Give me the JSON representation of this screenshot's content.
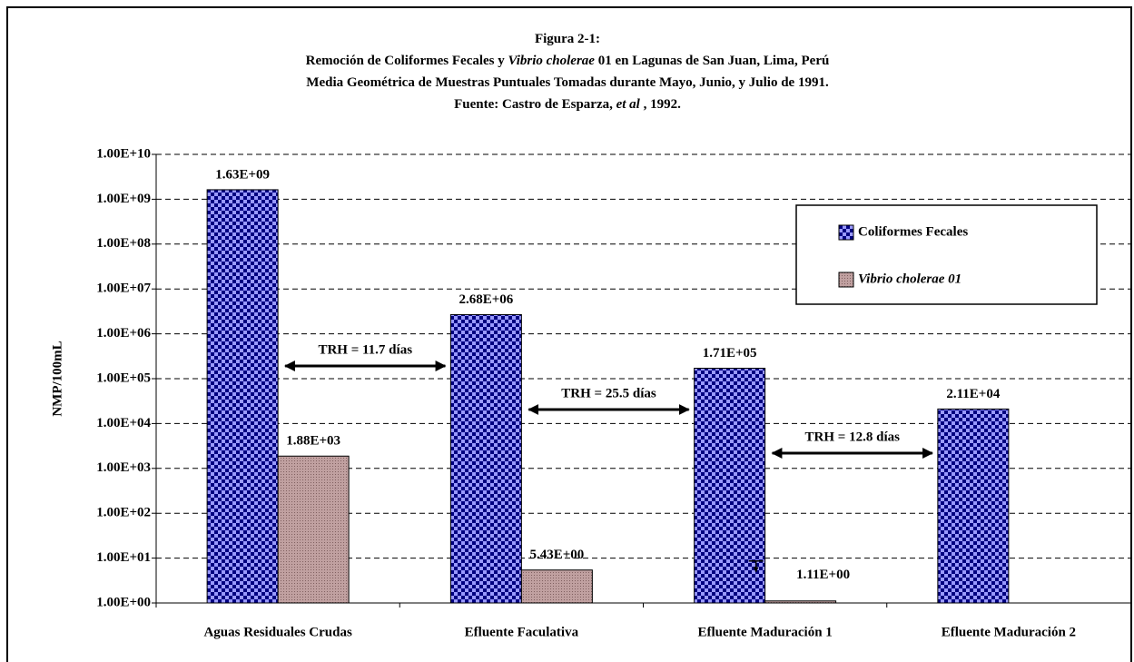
{
  "chart_data": {
    "type": "bar",
    "title": [
      [
        {
          "text": "Figura 2-1:"
        }
      ],
      [
        {
          "text": "Remoción de Coliformes Fecales y "
        },
        {
          "text": "Vibrio cholerae",
          "italic": true
        },
        {
          "text": "  01 en Lagunas de San Juan, Lima, Perú"
        }
      ],
      [
        {
          "text": "Media Geométrica de Muestras Puntuales Tomadas durante Mayo, Junio,  y Julio de 1991."
        }
      ],
      [
        {
          "text": "Fuente: Castro de Esparza, "
        },
        {
          "text": "et al",
          "italic": true
        },
        {
          "text": " , 1992."
        }
      ]
    ],
    "ylabel": "NMP/100mL",
    "categories": [
      "Aguas Residuales Crudas",
      "Efluente Faculativa",
      "Efluente Maduración 1",
      "Efluente Maduración 2"
    ],
    "series": [
      {
        "name": "Coliformes Fecales",
        "color": "#9999ff",
        "italic": false,
        "values": [
          1630000000,
          2680000,
          171000,
          21100
        ],
        "value_labels": [
          "1.63E+09",
          "2.68E+06",
          "1.71E+05",
          "2.11E+04"
        ]
      },
      {
        "name": "Vibrio cholerae 01",
        "color": "#c0a0a0",
        "italic": true,
        "values": [
          1880,
          5.43,
          1.11,
          null
        ],
        "value_labels": [
          "1.88E+03",
          "5.43E+00",
          "1.11E+00",
          null
        ]
      }
    ],
    "annotations": [
      "TRH = 11.7 días",
      "TRH = 25.5 días",
      "TRH = 12.8 días"
    ],
    "log_scale": true,
    "grid": true,
    "legend": "upper right",
    "ylim": [
      1,
      10000000000
    ],
    "yticks": [
      {
        "value": 1,
        "label": "1.00E+00"
      },
      {
        "value": 10,
        "label": "1.00E+01"
      },
      {
        "value": 100,
        "label": "1.00E+02"
      },
      {
        "value": 1000,
        "label": "1.00E+03"
      },
      {
        "value": 10000,
        "label": "1.00E+04"
      },
      {
        "value": 100000,
        "label": "1.00E+05"
      },
      {
        "value": 1000000,
        "label": "1.00E+06"
      },
      {
        "value": 10000000,
        "label": "1.00E+07"
      },
      {
        "value": 100000000,
        "label": "1.00E+08"
      },
      {
        "value": 1000000000,
        "label": "1.00E+09"
      },
      {
        "value": 10000000000,
        "label": "1.00E+10"
      }
    ]
  }
}
